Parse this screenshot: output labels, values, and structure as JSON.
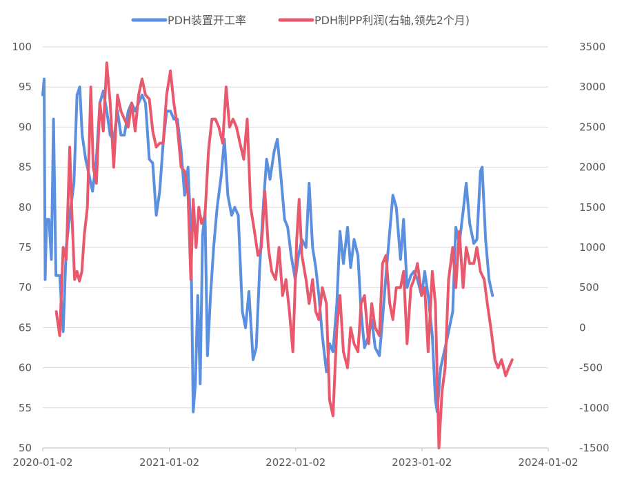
{
  "chart_data": {
    "type": "line",
    "title": "",
    "legend": [
      {
        "name": "PDH装置开工率",
        "color": "#5B8FE0",
        "axis": "left"
      },
      {
        "name": "PDH制PP利润(右轴,领先2个月)",
        "color": "#E8596E",
        "axis": "right"
      }
    ],
    "x_ticks": [
      "2020-01-02",
      "2021-01-02",
      "2022-01-02",
      "2023-01-02",
      "2024-01-02"
    ],
    "x_range": [
      "2020-01-02",
      "2024-01-02"
    ],
    "y_left": {
      "min": 50,
      "max": 100,
      "step": 5,
      "ticks": [
        "100",
        "95",
        "90",
        "85",
        "80",
        "75",
        "70",
        "65",
        "60",
        "55",
        "50"
      ]
    },
    "y_right": {
      "min": -1500,
      "max": 3500,
      "step": 500,
      "ticks": [
        "3500",
        "3000",
        "2500",
        "2000",
        "1500",
        "1000",
        "500",
        "0",
        "-500",
        "-1000",
        "-1500"
      ]
    },
    "series": [
      {
        "name": "PDH装置开工率",
        "axis": "left",
        "points": [
          [
            "2020-01-02",
            94.0
          ],
          [
            "2020-01-06",
            96.0
          ],
          [
            "2020-01-09",
            71.0
          ],
          [
            "2020-01-13",
            78.5
          ],
          [
            "2020-01-20",
            78.5
          ],
          [
            "2020-01-27",
            73.5
          ],
          [
            "2020-02-02",
            91.0
          ],
          [
            "2020-02-09",
            71.5
          ],
          [
            "2020-02-20",
            71.5
          ],
          [
            "2020-03-01",
            64.5
          ],
          [
            "2020-03-10",
            75.0
          ],
          [
            "2020-03-20",
            79.0
          ],
          [
            "2020-04-01",
            83.0
          ],
          [
            "2020-04-10",
            94.0
          ],
          [
            "2020-04-18",
            95.0
          ],
          [
            "2020-04-25",
            89.0
          ],
          [
            "2020-05-05",
            86.0
          ],
          [
            "2020-05-15",
            84.0
          ],
          [
            "2020-05-25",
            82.0
          ],
          [
            "2020-06-05",
            86.0
          ],
          [
            "2020-06-15",
            93.0
          ],
          [
            "2020-06-25",
            94.5
          ],
          [
            "2020-07-05",
            92.0
          ],
          [
            "2020-07-15",
            89.0
          ],
          [
            "2020-07-25",
            88.5
          ],
          [
            "2020-08-05",
            92.0
          ],
          [
            "2020-08-15",
            89.0
          ],
          [
            "2020-08-25",
            89.0
          ],
          [
            "2020-09-05",
            92.0
          ],
          [
            "2020-09-15",
            93.0
          ],
          [
            "2020-09-25",
            92.0
          ],
          [
            "2020-10-05",
            93.0
          ],
          [
            "2020-10-15",
            94.0
          ],
          [
            "2020-10-25",
            93.0
          ],
          [
            "2020-11-05",
            86.0
          ],
          [
            "2020-11-15",
            85.5
          ],
          [
            "2020-11-25",
            79.0
          ],
          [
            "2020-12-05",
            82.0
          ],
          [
            "2020-12-15",
            88.0
          ],
          [
            "2020-12-25",
            92.0
          ],
          [
            "2021-01-05",
            92.0
          ],
          [
            "2021-01-15",
            91.0
          ],
          [
            "2021-01-25",
            91.0
          ],
          [
            "2021-02-05",
            87.0
          ],
          [
            "2021-02-15",
            81.5
          ],
          [
            "2021-02-25",
            85.0
          ],
          [
            "2021-03-05",
            77.0
          ],
          [
            "2021-03-12",
            54.5
          ],
          [
            "2021-03-18",
            58.0
          ],
          [
            "2021-03-25",
            69.0
          ],
          [
            "2021-04-01",
            58.0
          ],
          [
            "2021-04-08",
            76.5
          ],
          [
            "2021-04-15",
            79.5
          ],
          [
            "2021-04-22",
            61.5
          ],
          [
            "2021-05-01",
            69.0
          ],
          [
            "2021-05-10",
            75.0
          ],
          [
            "2021-05-20",
            80.0
          ],
          [
            "2021-06-01",
            84.0
          ],
          [
            "2021-06-10",
            88.5
          ],
          [
            "2021-06-20",
            81.5
          ],
          [
            "2021-07-01",
            79.0
          ],
          [
            "2021-07-10",
            80.0
          ],
          [
            "2021-07-20",
            79.0
          ],
          [
            "2021-08-01",
            67.0
          ],
          [
            "2021-08-10",
            65.0
          ],
          [
            "2021-08-20",
            69.5
          ],
          [
            "2021-09-01",
            61.0
          ],
          [
            "2021-09-10",
            62.5
          ],
          [
            "2021-09-20",
            72.5
          ],
          [
            "2021-10-01",
            80.5
          ],
          [
            "2021-10-10",
            86.0
          ],
          [
            "2021-10-20",
            83.5
          ],
          [
            "2021-11-01",
            87.0
          ],
          [
            "2021-11-10",
            88.5
          ],
          [
            "2021-11-20",
            84.0
          ],
          [
            "2021-12-01",
            78.5
          ],
          [
            "2021-12-10",
            77.5
          ],
          [
            "2021-12-20",
            74.0
          ],
          [
            "2022-01-01",
            71.0
          ],
          [
            "2022-01-10",
            74.0
          ],
          [
            "2022-01-20",
            76.0
          ],
          [
            "2022-02-01",
            75.0
          ],
          [
            "2022-02-10",
            83.0
          ],
          [
            "2022-02-20",
            75.0
          ],
          [
            "2022-03-01",
            72.5
          ],
          [
            "2022-03-10",
            69.0
          ],
          [
            "2022-03-20",
            64.0
          ],
          [
            "2022-04-01",
            59.5
          ],
          [
            "2022-04-10",
            63.0
          ],
          [
            "2022-04-20",
            62.0
          ],
          [
            "2022-05-01",
            68.0
          ],
          [
            "2022-05-10",
            77.0
          ],
          [
            "2022-05-20",
            73.0
          ],
          [
            "2022-06-01",
            77.5
          ],
          [
            "2022-06-10",
            72.5
          ],
          [
            "2022-06-20",
            76.0
          ],
          [
            "2022-07-01",
            74.0
          ],
          [
            "2022-07-10",
            67.0
          ],
          [
            "2022-07-20",
            62.5
          ],
          [
            "2022-08-01",
            64.0
          ],
          [
            "2022-08-10",
            66.0
          ],
          [
            "2022-08-20",
            62.5
          ],
          [
            "2022-09-01",
            61.5
          ],
          [
            "2022-09-10",
            66.0
          ],
          [
            "2022-09-20",
            71.5
          ],
          [
            "2022-10-01",
            77.0
          ],
          [
            "2022-10-10",
            81.5
          ],
          [
            "2022-10-20",
            80.0
          ],
          [
            "2022-11-01",
            73.5
          ],
          [
            "2022-11-10",
            78.5
          ],
          [
            "2022-11-20",
            70.0
          ],
          [
            "2022-12-01",
            71.5
          ],
          [
            "2022-12-10",
            72.0
          ],
          [
            "2022-12-20",
            71.0
          ],
          [
            "2023-01-01",
            69.0
          ],
          [
            "2023-01-10",
            72.0
          ],
          [
            "2023-01-20",
            69.0
          ],
          [
            "2023-02-01",
            64.0
          ],
          [
            "2023-02-10",
            56.0
          ],
          [
            "2023-02-15",
            54.5
          ],
          [
            "2023-02-25",
            60.0
          ],
          [
            "2023-03-10",
            62.5
          ],
          [
            "2023-03-20",
            64.5
          ],
          [
            "2023-04-01",
            67.0
          ],
          [
            "2023-04-10",
            77.5
          ],
          [
            "2023-04-20",
            75.5
          ],
          [
            "2023-05-01",
            79.5
          ],
          [
            "2023-05-10",
            83.0
          ],
          [
            "2023-05-20",
            78.0
          ],
          [
            "2023-06-01",
            75.5
          ],
          [
            "2023-06-10",
            76.0
          ],
          [
            "2023-06-20",
            84.5
          ],
          [
            "2023-06-25",
            85.0
          ],
          [
            "2023-07-05",
            76.0
          ],
          [
            "2023-07-15",
            71.0
          ],
          [
            "2023-07-25",
            69.0
          ]
        ]
      },
      {
        "name": "PDH制PP利润(右轴,领先2个月)",
        "axis": "right",
        "points": [
          [
            "2020-02-10",
            200
          ],
          [
            "2020-02-20",
            -100
          ],
          [
            "2020-03-01",
            1000
          ],
          [
            "2020-03-10",
            850
          ],
          [
            "2020-03-20",
            2250
          ],
          [
            "2020-03-27",
            1350
          ],
          [
            "2020-04-03",
            600
          ],
          [
            "2020-04-10",
            700
          ],
          [
            "2020-04-17",
            580
          ],
          [
            "2020-04-24",
            700
          ],
          [
            "2020-05-01",
            1150
          ],
          [
            "2020-05-10",
            1500
          ],
          [
            "2020-05-20",
            3000
          ],
          [
            "2020-05-27",
            2000
          ],
          [
            "2020-06-05",
            1800
          ],
          [
            "2020-06-15",
            2800
          ],
          [
            "2020-06-25",
            2450
          ],
          [
            "2020-07-05",
            3300
          ],
          [
            "2020-07-15",
            2800
          ],
          [
            "2020-07-25",
            2000
          ],
          [
            "2020-08-05",
            2900
          ],
          [
            "2020-08-15",
            2700
          ],
          [
            "2020-08-25",
            2600
          ],
          [
            "2020-09-05",
            2500
          ],
          [
            "2020-09-15",
            2800
          ],
          [
            "2020-09-25",
            2450
          ],
          [
            "2020-10-05",
            2900
          ],
          [
            "2020-10-15",
            3100
          ],
          [
            "2020-10-25",
            2900
          ],
          [
            "2020-11-05",
            2850
          ],
          [
            "2020-11-15",
            2450
          ],
          [
            "2020-11-25",
            2250
          ],
          [
            "2020-12-05",
            2300
          ],
          [
            "2020-12-15",
            2300
          ],
          [
            "2020-12-25",
            2900
          ],
          [
            "2021-01-05",
            3200
          ],
          [
            "2021-01-15",
            2800
          ],
          [
            "2021-01-25",
            2500
          ],
          [
            "2021-02-05",
            2000
          ],
          [
            "2021-02-15",
            1950
          ],
          [
            "2021-02-25",
            1650
          ],
          [
            "2021-03-05",
            600
          ],
          [
            "2021-03-12",
            1600
          ],
          [
            "2021-03-20",
            1000
          ],
          [
            "2021-03-28",
            1500
          ],
          [
            "2021-04-05",
            1300
          ],
          [
            "2021-04-15",
            1400
          ],
          [
            "2021-04-25",
            2200
          ],
          [
            "2021-05-05",
            2600
          ],
          [
            "2021-05-15",
            2600
          ],
          [
            "2021-05-25",
            2500
          ],
          [
            "2021-06-05",
            2300
          ],
          [
            "2021-06-15",
            3000
          ],
          [
            "2021-06-25",
            2500
          ],
          [
            "2021-07-05",
            2600
          ],
          [
            "2021-07-15",
            2500
          ],
          [
            "2021-07-25",
            2300
          ],
          [
            "2021-08-05",
            2100
          ],
          [
            "2021-08-15",
            2600
          ],
          [
            "2021-08-25",
            1500
          ],
          [
            "2021-09-05",
            1200
          ],
          [
            "2021-09-15",
            900
          ],
          [
            "2021-09-25",
            1000
          ],
          [
            "2021-10-05",
            1700
          ],
          [
            "2021-10-15",
            1000
          ],
          [
            "2021-10-25",
            700
          ],
          [
            "2021-11-05",
            600
          ],
          [
            "2021-11-15",
            1000
          ],
          [
            "2021-11-25",
            400
          ],
          [
            "2021-12-05",
            600
          ],
          [
            "2021-12-15",
            200
          ],
          [
            "2021-12-25",
            -300
          ],
          [
            "2022-01-05",
            1100
          ],
          [
            "2022-01-12",
            1600
          ],
          [
            "2022-01-20",
            900
          ],
          [
            "2022-02-01",
            600
          ],
          [
            "2022-02-10",
            300
          ],
          [
            "2022-02-20",
            600
          ],
          [
            "2022-03-01",
            200
          ],
          [
            "2022-03-10",
            100
          ],
          [
            "2022-03-20",
            500
          ],
          [
            "2022-04-01",
            300
          ],
          [
            "2022-04-10",
            -900
          ],
          [
            "2022-04-20",
            -1100
          ],
          [
            "2022-05-01",
            0
          ],
          [
            "2022-05-10",
            400
          ],
          [
            "2022-05-20",
            -300
          ],
          [
            "2022-06-01",
            -500
          ],
          [
            "2022-06-10",
            0
          ],
          [
            "2022-06-20",
            -200
          ],
          [
            "2022-07-01",
            -300
          ],
          [
            "2022-07-10",
            300
          ],
          [
            "2022-07-20",
            400
          ],
          [
            "2022-08-01",
            -200
          ],
          [
            "2022-08-10",
            300
          ],
          [
            "2022-08-20",
            0
          ],
          [
            "2022-09-01",
            -100
          ],
          [
            "2022-09-10",
            800
          ],
          [
            "2022-09-20",
            900
          ],
          [
            "2022-10-01",
            300
          ],
          [
            "2022-10-10",
            100
          ],
          [
            "2022-10-20",
            500
          ],
          [
            "2022-11-01",
            500
          ],
          [
            "2022-11-10",
            700
          ],
          [
            "2022-11-20",
            -200
          ],
          [
            "2022-12-01",
            500
          ],
          [
            "2022-12-10",
            600
          ],
          [
            "2022-12-20",
            800
          ],
          [
            "2023-01-01",
            400
          ],
          [
            "2023-01-10",
            500
          ],
          [
            "2023-01-20",
            -300
          ],
          [
            "2023-02-01",
            700
          ],
          [
            "2023-02-10",
            300
          ],
          [
            "2023-02-20",
            -1500
          ],
          [
            "2023-03-01",
            -800
          ],
          [
            "2023-03-10",
            -500
          ],
          [
            "2023-03-20",
            600
          ],
          [
            "2023-04-01",
            1000
          ],
          [
            "2023-04-10",
            500
          ],
          [
            "2023-04-20",
            1200
          ],
          [
            "2023-05-01",
            500
          ],
          [
            "2023-05-10",
            1000
          ],
          [
            "2023-05-20",
            800
          ],
          [
            "2023-06-01",
            800
          ],
          [
            "2023-06-10",
            1000
          ],
          [
            "2023-06-20",
            700
          ],
          [
            "2023-07-01",
            600
          ],
          [
            "2023-07-10",
            300
          ],
          [
            "2023-07-20",
            0
          ],
          [
            "2023-08-01",
            -400
          ],
          [
            "2023-08-10",
            -500
          ],
          [
            "2023-08-20",
            -400
          ],
          [
            "2023-09-01",
            -600
          ],
          [
            "2023-09-10",
            -500
          ],
          [
            "2023-09-20",
            -400
          ]
        ]
      }
    ]
  }
}
